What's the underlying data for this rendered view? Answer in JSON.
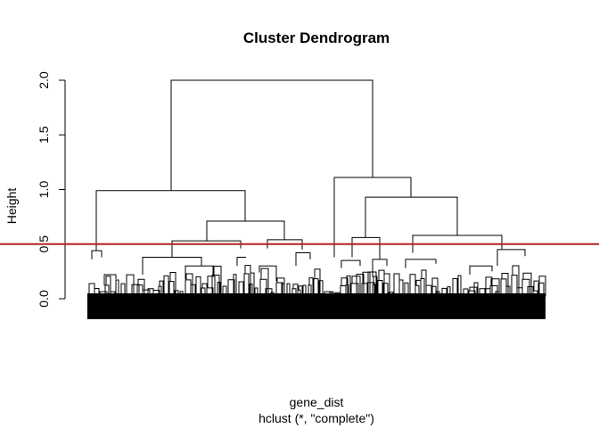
{
  "chart_data": {
    "type": "dendrogram",
    "title": "Cluster Dendrogram",
    "xlabel": "gene_dist",
    "sub": "hclust (*, \"complete\")",
    "ylabel": "Height",
    "yticks": [
      "0.0",
      "0.5",
      "1.0",
      "1.5",
      "2.0"
    ],
    "ylim": [
      -0.2,
      2.0
    ],
    "cut_height": 0.5,
    "cut_color": "#b22222",
    "line_color": "#000000",
    "merges": [
      {
        "name": "root",
        "height": 2.0,
        "left": 0.385,
        "right": 0.816
      },
      {
        "name": "left-main",
        "height": 0.99,
        "left": 0.226,
        "right": 0.542
      },
      {
        "name": "left-sub",
        "height": 0.71,
        "left": 0.415,
        "right": 0.664
      },
      {
        "name": "left-a",
        "height": 0.53,
        "left": 0.31,
        "right": 0.47
      },
      {
        "name": "left-b",
        "height": 0.54,
        "left": 0.56,
        "right": 0.76
      },
      {
        "name": "right-main",
        "height": 1.11,
        "left": 0.73,
        "right": 0.89
      },
      {
        "name": "right-sub",
        "height": 0.93,
        "left": 0.73,
        "right": 0.92
      },
      {
        "name": "right-a",
        "height": 0.56,
        "left": 0.37,
        "right": 0.74
      },
      {
        "name": "right-b",
        "height": 0.58,
        "left": 0.39,
        "right": 0.795
      }
    ]
  }
}
